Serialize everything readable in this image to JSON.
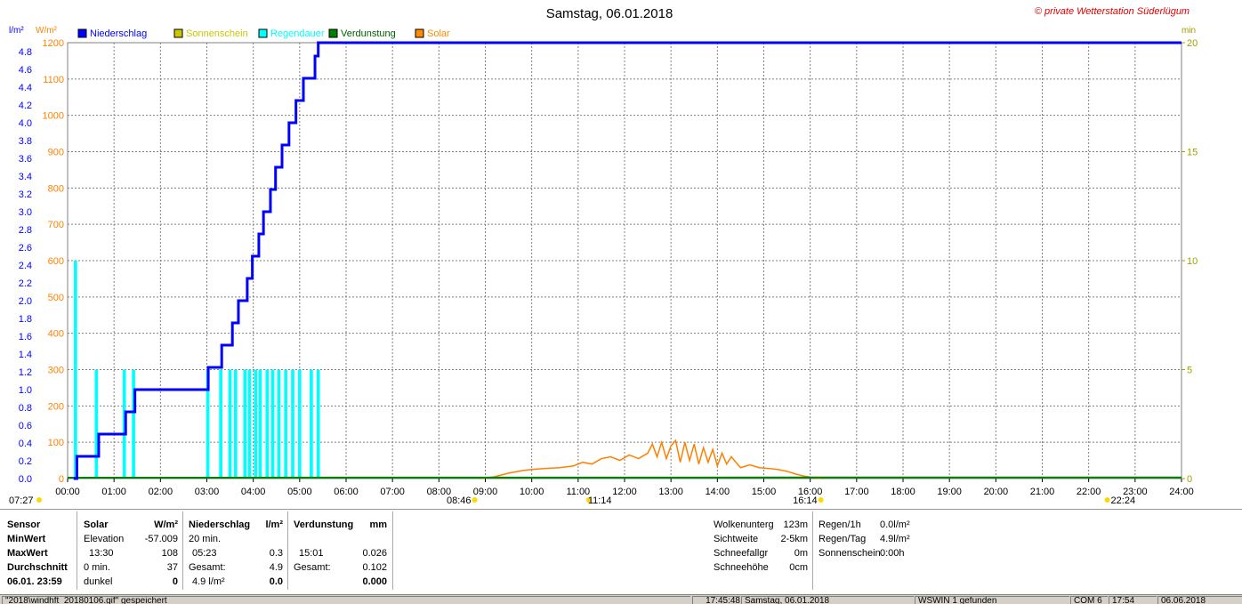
{
  "header": {
    "title": "Samstag, 06.01.2018",
    "copyright": "© private Wetterstation Süderlügum",
    "unit_left1": "l/m²",
    "unit_left2": "W/m²",
    "unit_right": "min"
  },
  "legend": [
    {
      "label": "Niederschlag",
      "color": "#0000ff"
    },
    {
      "label": "Sonnenschein",
      "color": "#c8c800"
    },
    {
      "label": "Regendauer",
      "color": "#00ffff"
    },
    {
      "label": "Verdunstung",
      "color": "#008000"
    },
    {
      "label": "Solar",
      "color": "#ff8c00"
    }
  ],
  "colors": {
    "niederschlag": "#0000ff",
    "sonnenschein": "#c8c800",
    "regendauer": "#00ffff",
    "verdunstung": "#008000",
    "solar": "#ff8000",
    "grid": "#808080"
  },
  "chart_data": {
    "type": "line",
    "title": "Samstag, 06.01.2018",
    "x_unit": "hours",
    "xlim": [
      0,
      24
    ],
    "x_ticks": [
      "00:00",
      "01:00",
      "02:00",
      "03:00",
      "04:00",
      "05:00",
      "06:00",
      "07:00",
      "08:00",
      "09:00",
      "10:00",
      "11:00",
      "12:00",
      "13:00",
      "14:00",
      "15:00",
      "16:00",
      "17:00",
      "18:00",
      "19:00",
      "20:00",
      "21:00",
      "22:00",
      "23:00",
      "24:00"
    ],
    "y_left_precip": {
      "label": "l/m²",
      "ylim": [
        0,
        4.9
      ],
      "ticks": [
        "0.0",
        "0.2",
        "0.4",
        "0.6",
        "0.8",
        "1.0",
        "1.2",
        "1.4",
        "1.6",
        "1.8",
        "2.0",
        "2.2",
        "2.4",
        "2.6",
        "2.8",
        "3.0",
        "3.2",
        "3.4",
        "3.6",
        "3.8",
        "4.0",
        "4.2",
        "4.4",
        "4.6",
        "4.8"
      ]
    },
    "y_left_solar": {
      "label": "W/m²",
      "ylim": [
        0,
        1200
      ],
      "ticks": [
        "0",
        "100",
        "200",
        "300",
        "400",
        "500",
        "600",
        "700",
        "800",
        "900",
        "1000",
        "1100",
        "1200"
      ]
    },
    "y_right_minutes": {
      "label": "min",
      "ylim": [
        0,
        20
      ],
      "ticks": [
        "0",
        "5",
        "10",
        "15",
        "20"
      ]
    },
    "sun_markers": [
      {
        "label": "07:27",
        "x": 0.0
      },
      {
        "label": "08:46",
        "x": 8.77
      },
      {
        "label": "11:14",
        "x": 11.23
      },
      {
        "label": "16:14",
        "x": 16.23
      },
      {
        "label": "22:24",
        "x": 22.4
      }
    ],
    "series": [
      {
        "name": "Niederschlag",
        "step": true,
        "points": [
          [
            0.13,
            0
          ],
          [
            0.2,
            0.25
          ],
          [
            0.6,
            0.25
          ],
          [
            0.67,
            0.5
          ],
          [
            1.17,
            0.5
          ],
          [
            1.25,
            0.75
          ],
          [
            1.4,
            0.75
          ],
          [
            1.45,
            1.0
          ],
          [
            2.98,
            1.0
          ],
          [
            3.03,
            1.25
          ],
          [
            3.27,
            1.25
          ],
          [
            3.32,
            1.5
          ],
          [
            3.5,
            1.5
          ],
          [
            3.55,
            1.75
          ],
          [
            3.63,
            1.75
          ],
          [
            3.68,
            2.0
          ],
          [
            3.82,
            2.0
          ],
          [
            3.87,
            2.25
          ],
          [
            3.93,
            2.25
          ],
          [
            3.98,
            2.5
          ],
          [
            4.07,
            2.5
          ],
          [
            4.12,
            2.75
          ],
          [
            4.17,
            2.75
          ],
          [
            4.22,
            3.0
          ],
          [
            4.32,
            3.0
          ],
          [
            4.37,
            3.25
          ],
          [
            4.43,
            3.25
          ],
          [
            4.48,
            3.5
          ],
          [
            4.57,
            3.5
          ],
          [
            4.62,
            3.75
          ],
          [
            4.72,
            3.75
          ],
          [
            4.77,
            4.0
          ],
          [
            4.87,
            4.0
          ],
          [
            4.92,
            4.25
          ],
          [
            5.03,
            4.25
          ],
          [
            5.08,
            4.5
          ],
          [
            5.27,
            4.5
          ],
          [
            5.33,
            4.75
          ],
          [
            5.38,
            4.75
          ],
          [
            5.4,
            4.9
          ],
          [
            24,
            4.9
          ]
        ]
      },
      {
        "name": "Regendauer",
        "bar_width_h": 0.07,
        "bars": [
          [
            0.17,
            10
          ],
          [
            0.62,
            5
          ],
          [
            1.22,
            5
          ],
          [
            1.42,
            5
          ],
          [
            3.02,
            5
          ],
          [
            3.3,
            5
          ],
          [
            3.5,
            5
          ],
          [
            3.62,
            5
          ],
          [
            3.82,
            5
          ],
          [
            3.92,
            5
          ],
          [
            4.05,
            5
          ],
          [
            4.15,
            5
          ],
          [
            4.3,
            5
          ],
          [
            4.42,
            5
          ],
          [
            4.55,
            5
          ],
          [
            4.7,
            5
          ],
          [
            4.85,
            5
          ],
          [
            5.0,
            5
          ],
          [
            5.25,
            5
          ],
          [
            5.4,
            5
          ]
        ]
      },
      {
        "name": "Verdunstung",
        "points": [
          [
            0,
            0
          ],
          [
            24,
            0.003
          ]
        ]
      },
      {
        "name": "Solar",
        "points": [
          [
            8.9,
            0
          ],
          [
            9.2,
            5
          ],
          [
            9.5,
            15
          ],
          [
            9.8,
            22
          ],
          [
            10.0,
            25
          ],
          [
            10.3,
            28
          ],
          [
            10.6,
            30
          ],
          [
            10.9,
            35
          ],
          [
            11.1,
            45
          ],
          [
            11.3,
            40
          ],
          [
            11.5,
            55
          ],
          [
            11.7,
            60
          ],
          [
            11.9,
            50
          ],
          [
            12.1,
            65
          ],
          [
            12.3,
            55
          ],
          [
            12.5,
            70
          ],
          [
            12.6,
            95
          ],
          [
            12.7,
            60
          ],
          [
            12.8,
            100
          ],
          [
            12.9,
            55
          ],
          [
            13.0,
            90
          ],
          [
            13.1,
            105
          ],
          [
            13.2,
            45
          ],
          [
            13.3,
            100
          ],
          [
            13.4,
            50
          ],
          [
            13.5,
            95
          ],
          [
            13.6,
            40
          ],
          [
            13.7,
            85
          ],
          [
            13.8,
            45
          ],
          [
            13.9,
            80
          ],
          [
            14.0,
            35
          ],
          [
            14.1,
            70
          ],
          [
            14.2,
            40
          ],
          [
            14.3,
            60
          ],
          [
            14.5,
            30
          ],
          [
            14.7,
            38
          ],
          [
            14.9,
            30
          ],
          [
            15.1,
            28
          ],
          [
            15.3,
            25
          ],
          [
            15.5,
            20
          ],
          [
            15.7,
            12
          ],
          [
            15.9,
            6
          ],
          [
            16.1,
            2
          ],
          [
            16.25,
            0
          ]
        ]
      }
    ]
  },
  "table": {
    "sensor": {
      "label": "Sensor",
      "min": "MinWert",
      "max": "MaxWert",
      "avg": "Durchschnitt",
      "date": "06.01. 23:59"
    },
    "solar": {
      "title": "Solar",
      "unit": "W/m²",
      "r1a": "Elevation",
      "r1b": "-57.009",
      "r2a": "13:30",
      "r2b": "108",
      "r3a": "0 min.",
      "r3b": "37",
      "r4a": "dunkel",
      "r4b": "0"
    },
    "niederschlag": {
      "title": "Niederschlag",
      "unit": "l/m²",
      "r1a": "20 min.",
      "r2a": "05:23",
      "r2b": "0.3",
      "r3a": "Gesamt:",
      "r3b": "4.9",
      "r4a": "4.9 l/m²",
      "r4b": "0.0"
    },
    "verdunstung": {
      "title": "Verdunstung",
      "unit": "mm",
      "r2a": "15:01",
      "r2b": "0.026",
      "r3a": "Gesamt:",
      "r3b": "0.102",
      "r4b": "0.000"
    },
    "weather": {
      "wolken_l": "Wolkenunterg",
      "wolken_v": "123m",
      "sicht_l": "Sichtweite",
      "sicht_v": "2-5km",
      "schneefall_l": "Schneefallgr",
      "schneefall_v": "0m",
      "schneehoehe_l": "Schneehöhe",
      "schneehoehe_v": "0cm",
      "regen1h_l": "Regen/1h",
      "regen1h_v": "0.0l/m²",
      "regentag_l": "Regen/Tag",
      "regentag_v": "4.9l/m²",
      "sonne_l": "Sonnenschein",
      "sonne_v": "0:00h"
    }
  },
  "statusbar": {
    "file": "\"2018\\windhft_20180106.gif\" gespeichert",
    "time1": "17:45:48",
    "date": "Samstag, 06.01.2018",
    "wswin": "WSWIN 1 gefunden",
    "com": "COM 6",
    "time2": "17:54",
    "date2": "06.06.2018"
  }
}
